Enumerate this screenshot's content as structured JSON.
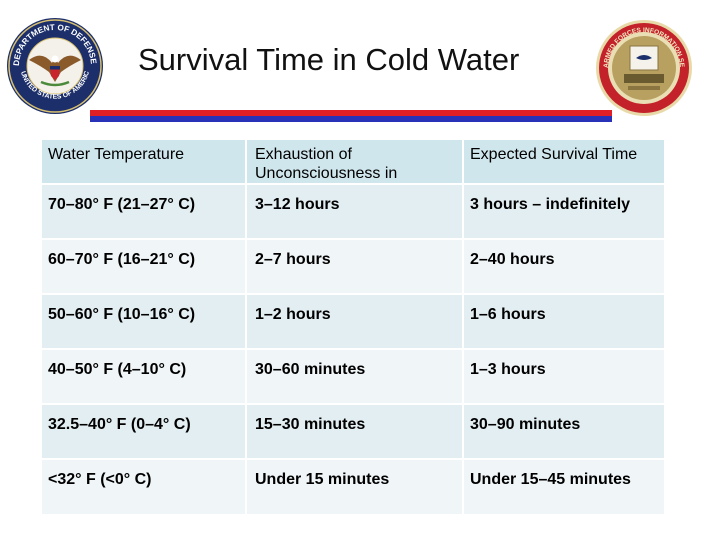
{
  "header": {
    "title": "Survival Time in Cold Water",
    "left_seal_text": "DEPARTMENT OF DEFENSE · UNITED STATES OF AMERICA",
    "right_seal_text": "ARMED FORCES INFORMATION SERVICE"
  },
  "table": {
    "headers": [
      "Water Temperature",
      "Exhaustion of Unconsciousness in",
      "Expected Survival Time"
    ],
    "rows": [
      [
        "70–80° F (21–27° C)",
        "3–12 hours",
        "3 hours – indefinitely"
      ],
      [
        "60–70° F (16–21° C)",
        "2–7 hours",
        "2–40 hours"
      ],
      [
        "50–60° F (10–16° C)",
        "1–2 hours",
        "1–6 hours"
      ],
      [
        "40–50° F (4–10° C)",
        "30–60 minutes",
        "1–3 hours"
      ],
      [
        "32.5–40° F (0–4° C)",
        "15–30 minutes",
        "30–90 minutes"
      ],
      [
        "<32° F (<0° C)",
        "Under 15 minutes",
        "Under 15–45 minutes"
      ]
    ]
  },
  "colors": {
    "header_row": "#cfe6ec",
    "row_odd": "#e3eef2",
    "row_even": "#f0f5f8",
    "rule_red": "#e01f26",
    "rule_blue": "#2832b8"
  },
  "icons": [
    "dod-seal-icon",
    "afis-seal-icon"
  ]
}
